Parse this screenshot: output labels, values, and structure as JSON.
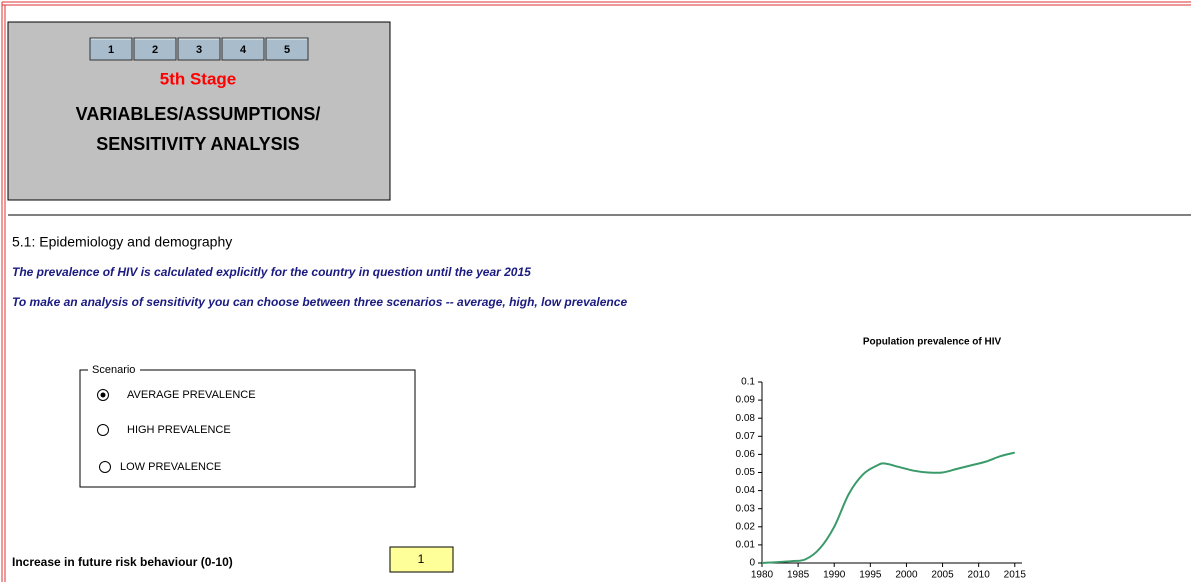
{
  "nav": {
    "buttons": [
      "1",
      "2",
      "3",
      "4",
      "5"
    ]
  },
  "header": {
    "stage": "5th Stage",
    "title_lines": [
      "VARIABLES/ASSUMPTIONS/",
      "SENSITIVITY ANALYSIS"
    ]
  },
  "section": {
    "title": "5.1: Epidemiology and demography",
    "notes": [
      "The prevalence of HIV is calculated explicitly for the country in question until the year 2015",
      "To make an analysis of sensitivity you can choose between three scenarios -- average, high, low prevalence"
    ]
  },
  "scenario": {
    "label": "Scenario",
    "options": [
      "AVERAGE PREVALENCE",
      "HIGH PREVALENCE",
      "LOW PREVALENCE"
    ],
    "selected": 0
  },
  "risk": {
    "label": "Increase in future risk behaviour (0-10)",
    "value": 1
  },
  "chart_data": {
    "type": "line",
    "title": "Population prevalence of HIV",
    "x": [
      1980,
      1984,
      1986,
      1988,
      1990,
      1992,
      1994,
      1996,
      1997,
      1999,
      2001,
      2003,
      2005,
      2007,
      2009,
      2011,
      2013,
      2015
    ],
    "values": [
      0,
      0.001,
      0.002,
      0.008,
      0.02,
      0.038,
      0.049,
      0.054,
      0.055,
      0.053,
      0.051,
      0.05,
      0.05,
      0.052,
      0.054,
      0.056,
      0.059,
      0.061
    ],
    "color": "#3a9a6a",
    "xlim": [
      1980,
      2016
    ],
    "xticks": [
      1980,
      1985,
      1990,
      1995,
      2000,
      2005,
      2010,
      2015
    ],
    "ylim": [
      0,
      0.1
    ],
    "yticks": [
      0,
      0.01,
      0.02,
      0.03,
      0.04,
      0.05,
      0.06,
      0.07,
      0.08,
      0.09,
      0.1
    ]
  }
}
